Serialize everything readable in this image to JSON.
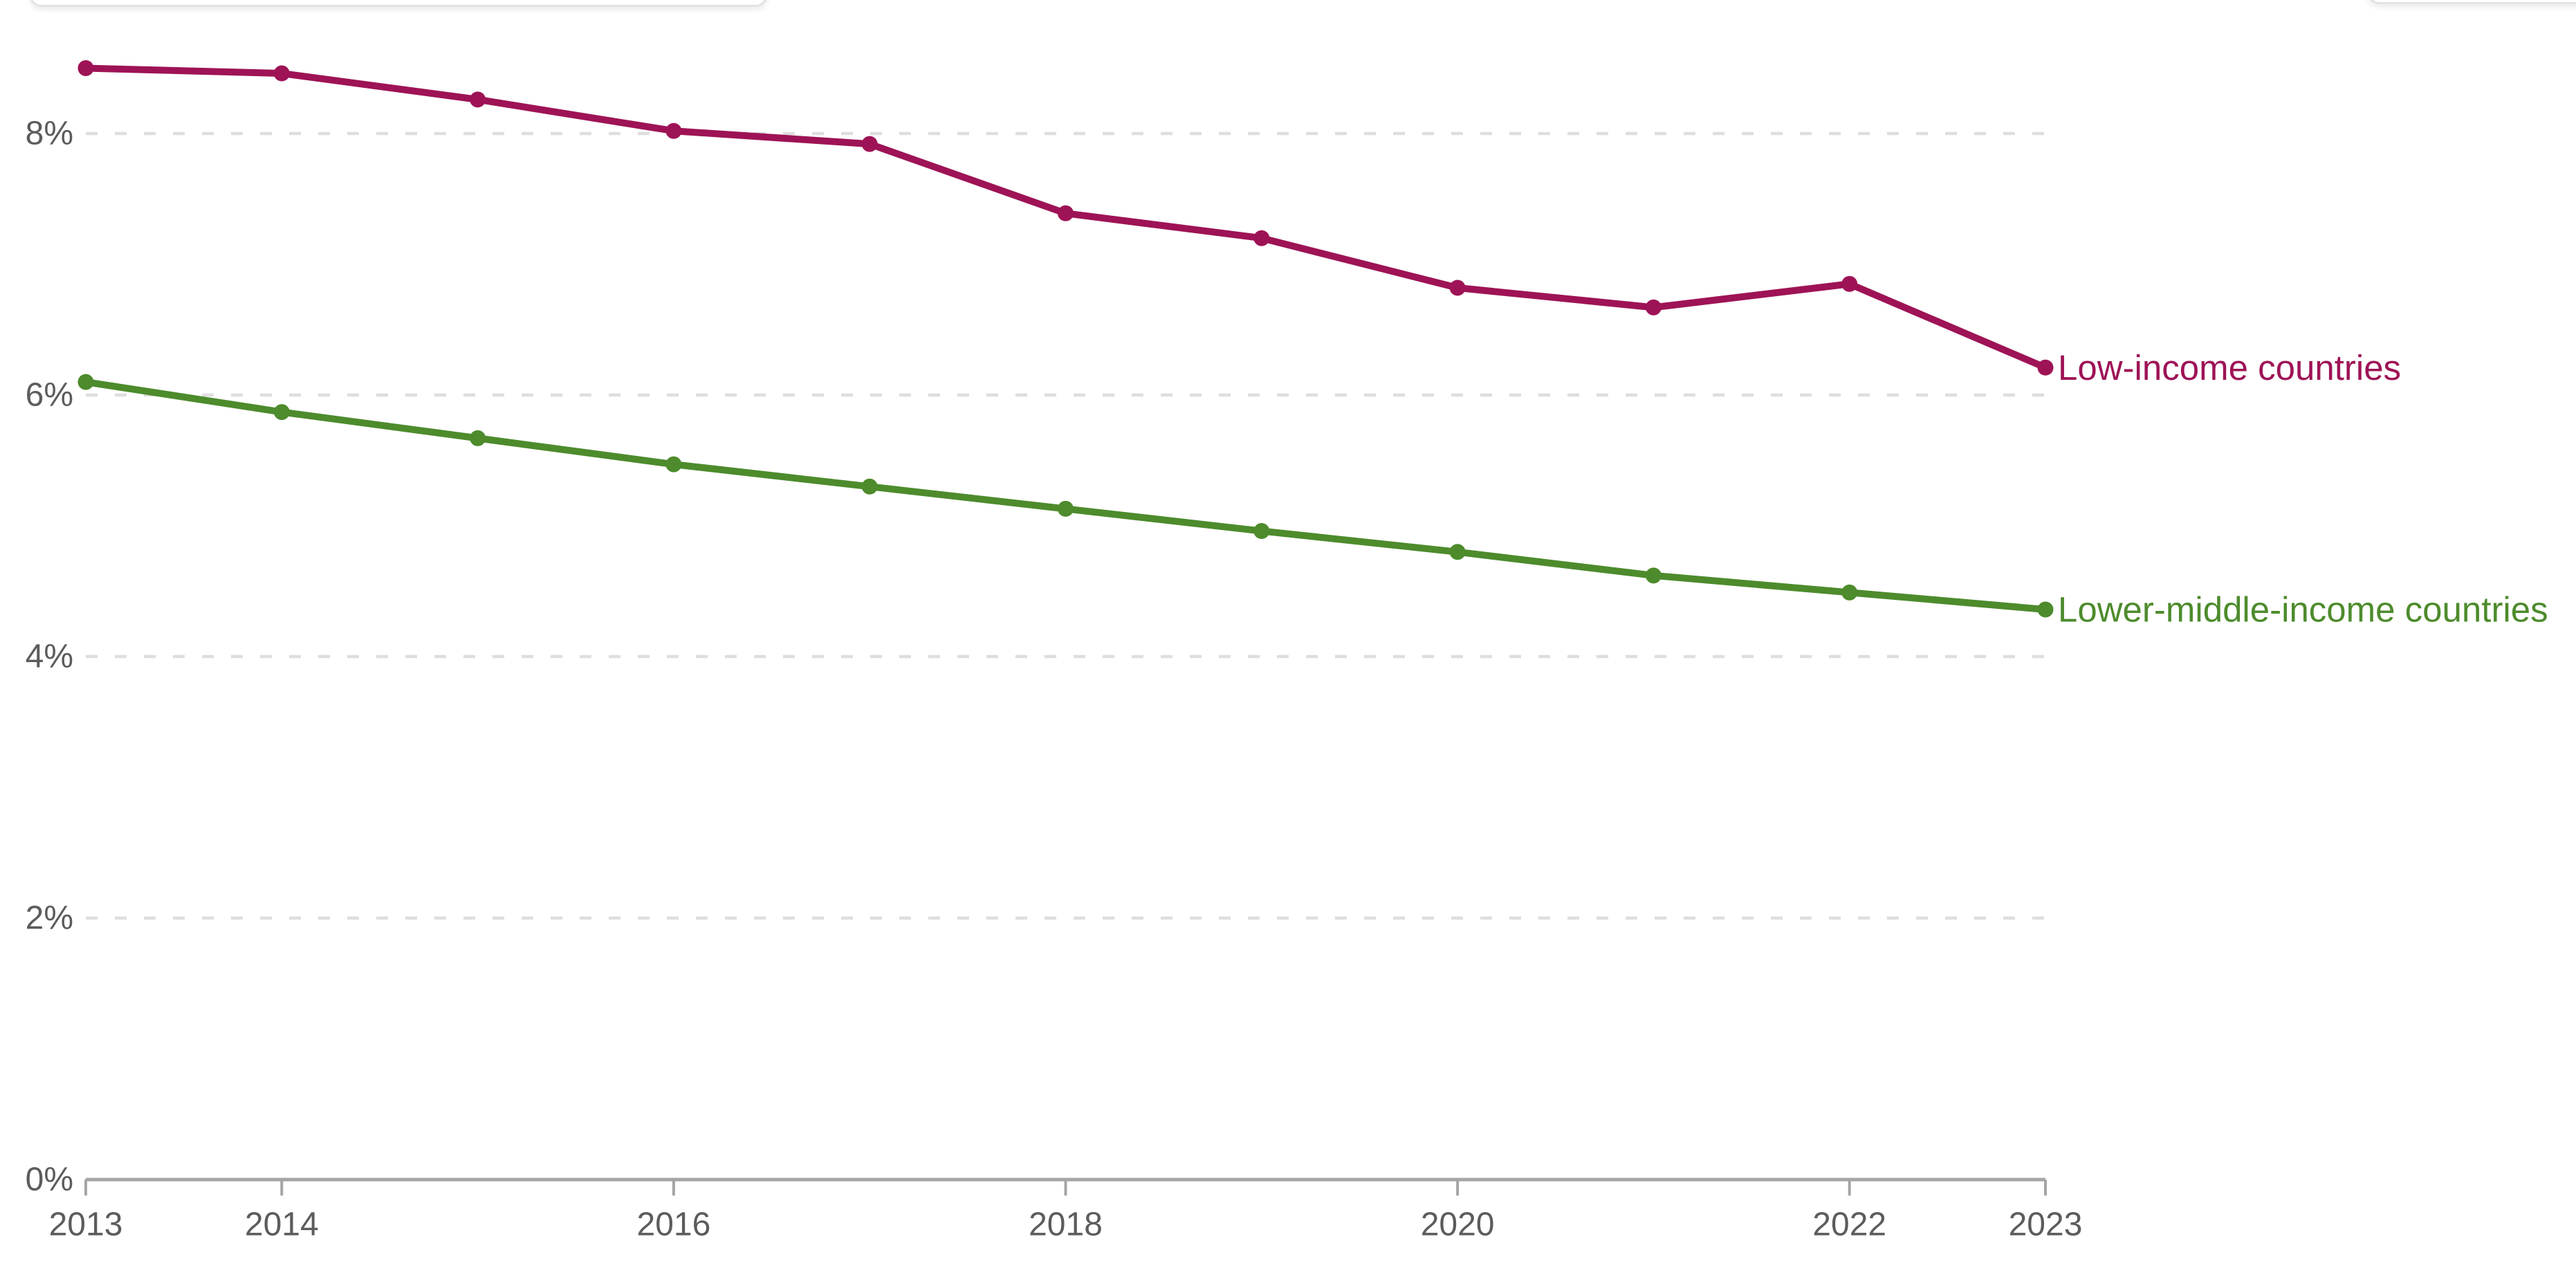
{
  "colors": {
    "background": "#ffffff",
    "grid": "#dedede",
    "axis": "#a5a5a5",
    "tick_text": "#5c5c5c",
    "low_income": "#9e1356",
    "lower_middle_income": "#4d8b2c"
  },
  "chart_data": {
    "type": "line",
    "x": [
      2013,
      2014,
      2015,
      2016,
      2017,
      2018,
      2019,
      2020,
      2021,
      2022,
      2023
    ],
    "series": [
      {
        "name": "Low-income countries",
        "color": "#9e1356",
        "values": [
          8.5,
          8.46,
          8.26,
          8.02,
          7.92,
          7.39,
          7.2,
          6.82,
          6.67,
          6.85,
          6.21
        ]
      },
      {
        "name": "Lower-middle-income countries",
        "color": "#4d8b2c",
        "values": [
          6.1,
          5.87,
          5.67,
          5.47,
          5.3,
          5.13,
          4.96,
          4.8,
          4.62,
          4.49,
          4.36
        ]
      }
    ],
    "x_tick_labels": [
      "2013",
      "2014",
      "2016",
      "2018",
      "2020",
      "2022",
      "2023"
    ],
    "y_ticks": [
      0,
      2,
      4,
      6,
      8
    ],
    "y_tick_labels": [
      "0%",
      "2%",
      "4%",
      "6%",
      "8%"
    ],
    "ylim": [
      0,
      9
    ],
    "xlim": [
      2013,
      2023
    ],
    "grid": "dashed-horizontal",
    "legend": "end-of-line-labels",
    "marker": "dot"
  }
}
